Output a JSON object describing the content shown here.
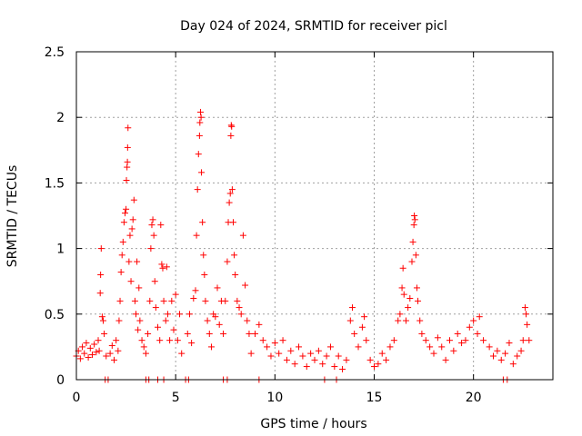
{
  "chart_data": {
    "type": "scatter",
    "title": "Day 024 of 2024, SRMTID for receiver picl",
    "xlabel": "GPS time / hours",
    "ylabel": "SRMTID / TECUs",
    "xlim": [
      0,
      24
    ],
    "ylim": [
      0,
      2.5
    ],
    "x_ticks": [
      0,
      5,
      10,
      15,
      20
    ],
    "x_tick_labels": [
      "0",
      "5",
      "10",
      "15",
      "20"
    ],
    "y_ticks": [
      0,
      0.5,
      1,
      1.5,
      2,
      2.5
    ],
    "y_tick_labels": [
      "0",
      "0.5",
      "1",
      "1.5",
      "2",
      "2.5"
    ],
    "grid": true,
    "marker": "plus",
    "series": [
      {
        "name": "SRMTID",
        "color": "#ff0000",
        "points": [
          [
            0.0,
            0.18
          ],
          [
            0.1,
            0.22
          ],
          [
            0.2,
            0.16
          ],
          [
            0.3,
            0.25
          ],
          [
            0.4,
            0.2
          ],
          [
            0.5,
            0.28
          ],
          [
            0.6,
            0.17
          ],
          [
            0.7,
            0.24
          ],
          [
            0.8,
            0.19
          ],
          [
            0.9,
            0.27
          ],
          [
            1.0,
            0.21
          ],
          [
            1.1,
            0.3
          ],
          [
            1.15,
            0.22
          ],
          [
            1.2,
            0.66
          ],
          [
            1.22,
            0.8
          ],
          [
            1.25,
            1.0
          ],
          [
            1.3,
            0.48
          ],
          [
            1.35,
            0.45
          ],
          [
            1.4,
            0.35
          ],
          [
            1.5,
            0.18
          ],
          [
            1.7,
            0.2
          ],
          [
            1.8,
            0.26
          ],
          [
            1.9,
            0.15
          ],
          [
            2.0,
            0.3
          ],
          [
            2.1,
            0.22
          ],
          [
            2.15,
            0.45
          ],
          [
            2.2,
            0.6
          ],
          [
            2.25,
            0.82
          ],
          [
            2.3,
            0.95
          ],
          [
            2.35,
            1.05
          ],
          [
            2.4,
            1.2
          ],
          [
            2.45,
            1.27
          ],
          [
            2.5,
            1.3
          ],
          [
            2.52,
            1.52
          ],
          [
            2.55,
            1.62
          ],
          [
            2.57,
            1.66
          ],
          [
            2.58,
            1.77
          ],
          [
            2.6,
            1.92
          ],
          [
            2.65,
            0.9
          ],
          [
            2.7,
            1.1
          ],
          [
            2.75,
            0.75
          ],
          [
            2.8,
            1.15
          ],
          [
            2.85,
            1.22
          ],
          [
            2.9,
            1.37
          ],
          [
            2.95,
            0.6
          ],
          [
            3.0,
            0.5
          ],
          [
            3.05,
            0.9
          ],
          [
            3.1,
            0.38
          ],
          [
            3.15,
            0.7
          ],
          [
            3.2,
            0.45
          ],
          [
            3.3,
            0.3
          ],
          [
            3.4,
            0.25
          ],
          [
            3.5,
            0.2
          ],
          [
            3.6,
            0.35
          ],
          [
            3.7,
            0.6
          ],
          [
            3.75,
            1.0
          ],
          [
            3.8,
            1.18
          ],
          [
            3.85,
            1.22
          ],
          [
            3.9,
            1.1
          ],
          [
            3.95,
            0.75
          ],
          [
            4.0,
            0.55
          ],
          [
            4.1,
            0.4
          ],
          [
            4.2,
            0.3
          ],
          [
            4.25,
            1.18
          ],
          [
            4.3,
            0.88
          ],
          [
            4.35,
            0.85
          ],
          [
            4.4,
            0.6
          ],
          [
            4.5,
            0.45
          ],
          [
            4.55,
            0.86
          ],
          [
            4.6,
            0.5
          ],
          [
            4.7,
            0.3
          ],
          [
            4.8,
            0.6
          ],
          [
            4.9,
            0.38
          ],
          [
            5.0,
            0.65
          ],
          [
            5.1,
            0.3
          ],
          [
            5.2,
            0.5
          ],
          [
            5.3,
            0.2
          ],
          [
            5.6,
            0.35
          ],
          [
            5.7,
            0.5
          ],
          [
            5.8,
            0.28
          ],
          [
            5.9,
            0.62
          ],
          [
            6.0,
            0.68
          ],
          [
            6.05,
            1.1
          ],
          [
            6.1,
            1.45
          ],
          [
            6.15,
            1.72
          ],
          [
            6.2,
            1.86
          ],
          [
            6.22,
            1.96
          ],
          [
            6.25,
            2.04
          ],
          [
            6.28,
            2.0
          ],
          [
            6.3,
            1.58
          ],
          [
            6.35,
            1.2
          ],
          [
            6.4,
            0.95
          ],
          [
            6.45,
            0.8
          ],
          [
            6.5,
            0.6
          ],
          [
            6.6,
            0.45
          ],
          [
            6.7,
            0.35
          ],
          [
            6.8,
            0.25
          ],
          [
            6.9,
            0.5
          ],
          [
            7.0,
            0.48
          ],
          [
            7.1,
            0.7
          ],
          [
            7.2,
            0.42
          ],
          [
            7.3,
            0.6
          ],
          [
            7.4,
            0.35
          ],
          [
            7.5,
            0.6
          ],
          [
            7.6,
            0.9
          ],
          [
            7.65,
            1.2
          ],
          [
            7.7,
            1.35
          ],
          [
            7.75,
            1.42
          ],
          [
            7.78,
            1.86
          ],
          [
            7.8,
            1.94
          ],
          [
            7.82,
            1.93
          ],
          [
            7.85,
            1.45
          ],
          [
            7.9,
            1.2
          ],
          [
            7.95,
            0.95
          ],
          [
            8.0,
            0.8
          ],
          [
            8.1,
            0.6
          ],
          [
            8.2,
            0.55
          ],
          [
            8.3,
            0.5
          ],
          [
            8.4,
            1.1
          ],
          [
            8.5,
            0.72
          ],
          [
            8.6,
            0.45
          ],
          [
            8.7,
            0.35
          ],
          [
            8.8,
            0.2
          ],
          [
            9.0,
            0.35
          ],
          [
            9.2,
            0.42
          ],
          [
            9.4,
            0.3
          ],
          [
            9.6,
            0.25
          ],
          [
            9.8,
            0.18
          ],
          [
            10.0,
            0.28
          ],
          [
            10.2,
            0.2
          ],
          [
            10.4,
            0.3
          ],
          [
            10.6,
            0.15
          ],
          [
            10.8,
            0.22
          ],
          [
            11.0,
            0.12
          ],
          [
            11.2,
            0.25
          ],
          [
            11.4,
            0.18
          ],
          [
            11.6,
            0.1
          ],
          [
            11.8,
            0.2
          ],
          [
            12.0,
            0.15
          ],
          [
            12.2,
            0.22
          ],
          [
            12.4,
            0.12
          ],
          [
            12.6,
            0.18
          ],
          [
            12.8,
            0.25
          ],
          [
            13.0,
            0.1
          ],
          [
            13.2,
            0.18
          ],
          [
            13.4,
            0.08
          ],
          [
            13.6,
            0.15
          ],
          [
            13.8,
            0.45
          ],
          [
            13.9,
            0.55
          ],
          [
            14.0,
            0.35
          ],
          [
            14.2,
            0.25
          ],
          [
            14.4,
            0.4
          ],
          [
            14.5,
            0.48
          ],
          [
            14.6,
            0.3
          ],
          [
            14.8,
            0.15
          ],
          [
            15.0,
            0.1
          ],
          [
            15.2,
            0.12
          ],
          [
            15.4,
            0.2
          ],
          [
            15.6,
            0.15
          ],
          [
            15.8,
            0.25
          ],
          [
            16.0,
            0.3
          ],
          [
            16.2,
            0.45
          ],
          [
            16.3,
            0.5
          ],
          [
            16.4,
            0.7
          ],
          [
            16.45,
            0.85
          ],
          [
            16.5,
            0.65
          ],
          [
            16.6,
            0.45
          ],
          [
            16.7,
            0.55
          ],
          [
            16.8,
            0.62
          ],
          [
            16.9,
            0.9
          ],
          [
            16.95,
            1.05
          ],
          [
            17.0,
            1.18
          ],
          [
            17.02,
            1.25
          ],
          [
            17.05,
            1.22
          ],
          [
            17.1,
            0.95
          ],
          [
            17.15,
            0.7
          ],
          [
            17.2,
            0.6
          ],
          [
            17.3,
            0.45
          ],
          [
            17.4,
            0.35
          ],
          [
            17.6,
            0.3
          ],
          [
            17.8,
            0.25
          ],
          [
            18.0,
            0.2
          ],
          [
            18.2,
            0.32
          ],
          [
            18.4,
            0.25
          ],
          [
            18.6,
            0.15
          ],
          [
            18.8,
            0.3
          ],
          [
            19.0,
            0.22
          ],
          [
            19.2,
            0.35
          ],
          [
            19.4,
            0.28
          ],
          [
            19.6,
            0.3
          ],
          [
            19.8,
            0.4
          ],
          [
            20.0,
            0.45
          ],
          [
            20.2,
            0.35
          ],
          [
            20.3,
            0.48
          ],
          [
            20.5,
            0.3
          ],
          [
            20.8,
            0.25
          ],
          [
            21.0,
            0.18
          ],
          [
            21.2,
            0.22
          ],
          [
            21.4,
            0.15
          ],
          [
            21.6,
            0.2
          ],
          [
            21.8,
            0.28
          ],
          [
            22.0,
            0.12
          ],
          [
            22.2,
            0.18
          ],
          [
            22.4,
            0.22
          ],
          [
            22.5,
            0.3
          ],
          [
            22.6,
            0.55
          ],
          [
            22.65,
            0.5
          ],
          [
            22.7,
            0.42
          ],
          [
            22.8,
            0.3
          ],
          [
            1.45,
            0
          ],
          [
            1.6,
            0
          ],
          [
            3.5,
            0
          ],
          [
            3.65,
            0
          ],
          [
            4.1,
            0
          ],
          [
            4.4,
            0
          ],
          [
            5.5,
            0
          ],
          [
            5.65,
            0
          ],
          [
            7.4,
            0
          ],
          [
            7.6,
            0
          ],
          [
            9.2,
            0
          ],
          [
            12.5,
            0
          ],
          [
            13.1,
            0
          ],
          [
            21.5,
            0
          ],
          [
            21.7,
            0
          ]
        ]
      }
    ]
  }
}
